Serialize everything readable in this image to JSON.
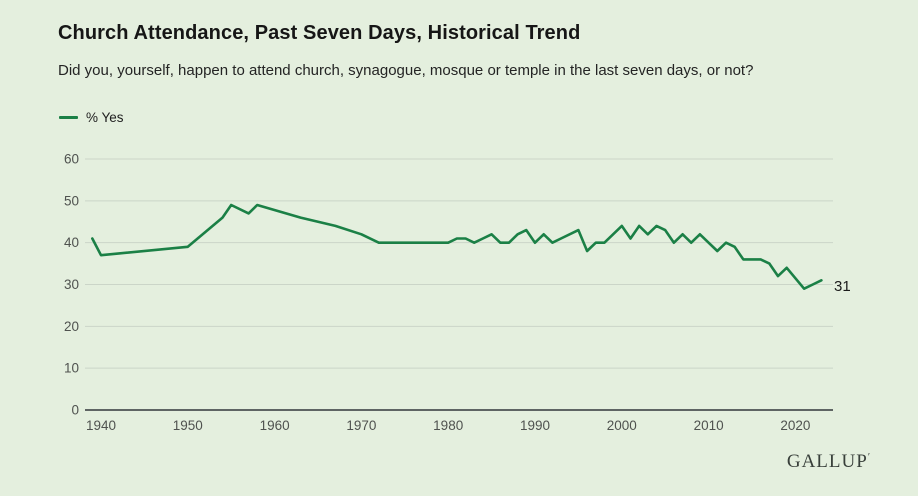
{
  "page": {
    "title": "Church Attendance, Past Seven Days, Historical Trend",
    "subtitle": "Did you, yourself, happen to attend church, synagogue, mosque or temple in the last seven days, or not?",
    "source_logo": "GALLUP",
    "source_logo_mark": "′"
  },
  "legend": {
    "series_label": "% Yes",
    "swatch_color": "#1b8046"
  },
  "chart_data": {
    "type": "line",
    "title": "Church Attendance, Past Seven Days, Historical Trend",
    "question": "Did you, yourself, happen to attend church, synagogue, mosque or temple in the last seven days, or not?",
    "series": [
      {
        "name": "% Yes",
        "points": [
          [
            1939,
            41
          ],
          [
            1940,
            37
          ],
          [
            1950,
            39
          ],
          [
            1954,
            46
          ],
          [
            1955,
            49
          ],
          [
            1957,
            47
          ],
          [
            1958,
            49
          ],
          [
            1963,
            46
          ],
          [
            1967,
            44
          ],
          [
            1970,
            42
          ],
          [
            1972,
            40
          ],
          [
            1976,
            40
          ],
          [
            1980,
            40
          ],
          [
            1981,
            41
          ],
          [
            1982,
            41
          ],
          [
            1983,
            40
          ],
          [
            1984,
            41
          ],
          [
            1985,
            42
          ],
          [
            1986,
            40
          ],
          [
            1987,
            40
          ],
          [
            1988,
            42
          ],
          [
            1989,
            43
          ],
          [
            1990,
            40
          ],
          [
            1991,
            42
          ],
          [
            1992,
            40
          ],
          [
            1993,
            41
          ],
          [
            1995,
            43
          ],
          [
            1996,
            38
          ],
          [
            1997,
            40
          ],
          [
            1998,
            40
          ],
          [
            1999,
            42
          ],
          [
            2000,
            44
          ],
          [
            2001,
            41
          ],
          [
            2002,
            44
          ],
          [
            2003,
            42
          ],
          [
            2004,
            44
          ],
          [
            2005,
            43
          ],
          [
            2006,
            40
          ],
          [
            2007,
            42
          ],
          [
            2008,
            40
          ],
          [
            2009,
            42
          ],
          [
            2010,
            40
          ],
          [
            2011,
            38
          ],
          [
            2012,
            40
          ],
          [
            2013,
            39
          ],
          [
            2014,
            36
          ],
          [
            2015,
            36
          ],
          [
            2016,
            36
          ],
          [
            2017,
            35
          ],
          [
            2018,
            32
          ],
          [
            2019,
            34
          ],
          [
            2021,
            29
          ],
          [
            2022,
            30
          ],
          [
            2023,
            31
          ]
        ]
      }
    ],
    "end_label": "31",
    "x_ticks": [
      1940,
      1950,
      1960,
      1970,
      1980,
      1990,
      2000,
      2010,
      2020
    ],
    "y_ticks": [
      0,
      10,
      20,
      30,
      40,
      50,
      60
    ],
    "xlim": [
      1938,
      2024
    ],
    "ylim": [
      0,
      60
    ],
    "grid": true,
    "legend_position": "top-left",
    "line_color": "#1b8046",
    "grid_color": "#cbd5c8",
    "axis_color": "#32363a",
    "tick_text_color": "#4f524f",
    "background_color": "#e4efde"
  }
}
